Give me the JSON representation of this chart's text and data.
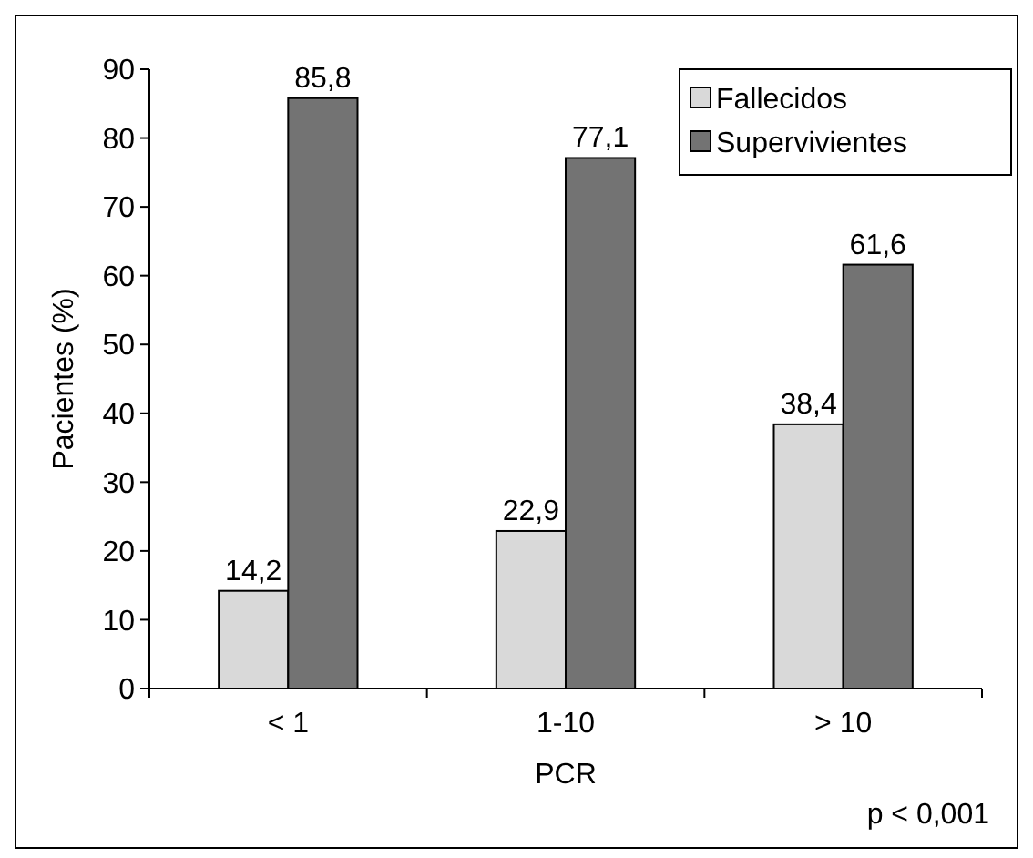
{
  "chart_data": {
    "type": "bar",
    "categories": [
      "< 1",
      "1-10",
      "> 10"
    ],
    "series": [
      {
        "name": "Fallecidos",
        "color": "#d9d9d9",
        "values": [
          14.2,
          22.9,
          38.4
        ],
        "value_labels": [
          "14,2",
          "22,9",
          "38,4"
        ]
      },
      {
        "name": "Supervivientes",
        "color": "#737373",
        "values": [
          85.8,
          77.1,
          61.6
        ],
        "value_labels": [
          "85,8",
          "77,1",
          "61,6"
        ]
      }
    ],
    "ylim": [
      0,
      90
    ],
    "yticks": [
      0,
      10,
      20,
      30,
      40,
      50,
      60,
      70,
      80,
      90
    ],
    "xlabel": "PCR",
    "ylabel": "Pacientes (%)",
    "annotations": [
      "p < 0,001"
    ],
    "legend": "top right",
    "grid": false
  }
}
